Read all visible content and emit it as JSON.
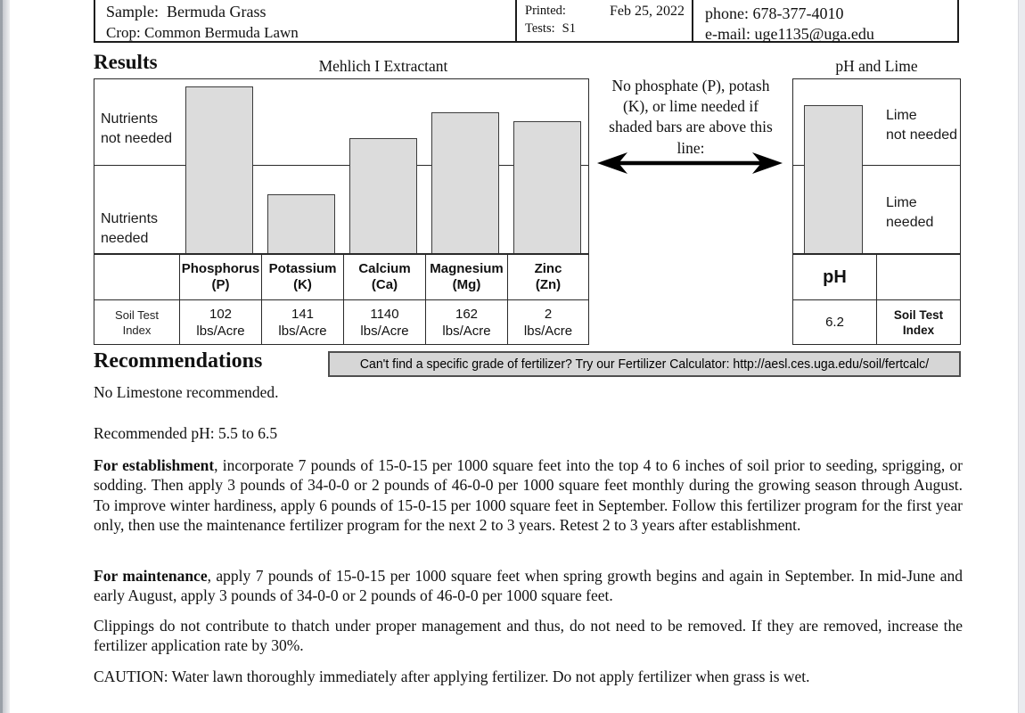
{
  "header": {
    "sample_label": "Sample:",
    "sample_value": "Bermuda Grass",
    "crop_label": "Crop:",
    "crop_value": "Common Bermuda Lawn",
    "printed_label": "Printed:",
    "printed_value": "Feb 25, 2022",
    "tests_label": "Tests:",
    "tests_value": "S1",
    "phone": "phone: 678-377-4010",
    "email": "e-mail: uge1135@uga.edu"
  },
  "results": {
    "section_title": "Results",
    "chart_title": "Mehlich I Extractant",
    "upper_label_line1": "Nutrients",
    "upper_label_line2": "not needed",
    "lower_label_line1": "Nutrients",
    "lower_label_line2": "needed",
    "row_label_line1": "Soil Test",
    "row_label_line2": "Index",
    "columns": [
      {
        "name": "Phosphorus",
        "symbol": "(P)",
        "value": "102",
        "unit": "lbs/Acre",
        "bar_pct": 96
      },
      {
        "name": "Potassium",
        "symbol": "(K)",
        "value": "141",
        "unit": "lbs/Acre",
        "bar_pct": 34
      },
      {
        "name": "Calcium",
        "symbol": "(Ca)",
        "value": "1140",
        "unit": "lbs/Acre",
        "bar_pct": 66
      },
      {
        "name": "Magnesium",
        "symbol": "(Mg)",
        "value": "162",
        "unit": "lbs/Acre",
        "bar_pct": 81
      },
      {
        "name": "Zinc",
        "symbol": "(Zn)",
        "value": "2",
        "unit": "lbs/Acre",
        "bar_pct": 76
      }
    ]
  },
  "annotation": {
    "lines": [
      "No phosphate (P), potash",
      "(K), or lime needed if",
      "shaded bars are above this",
      "line:"
    ]
  },
  "ph_section": {
    "section_title": "pH and Lime",
    "upper_label_line1": "Lime",
    "upper_label_line2": "not needed",
    "lower_label_line1": "Lime",
    "lower_label_line2": "needed",
    "header": "pH",
    "value": "6.2",
    "row_label_line1": "Soil Test",
    "row_label_line2": "Index",
    "bar_pct": 85
  },
  "recommendations": {
    "title": "Recommendations",
    "calculator_note": "Can't find a specific grade of fertilizer?  Try our Fertilizer Calculator: http://aesl.ces.uga.edu/soil/fertcalc/",
    "no_limestone": "No Limestone recommended.",
    "ph_line": "Recommended pH: 5.5 to 6.5",
    "paragraphs": [
      {
        "bold": "For establishment",
        "rest": ", incorporate 7 pounds of 15-0-15 per 1000 square feet into the top 4 to 6 inches of soil prior to seeding, sprigging, or sodding. Then apply 3 pounds of 34-0-0 or 2 pounds of 46-0-0 per 1000 square feet monthly during the growing season through August. To improve winter hardiness, apply 6 pounds of 15-0-15 per 1000 square feet in September. Follow this fertilizer program for the first year only, then use the maintenance fertilizer program for the next 2 to 3 years. Retest 2 to 3 years after establishment."
      },
      {
        "bold": "For maintenance",
        "rest": ", apply 7 pounds of 15-0-15 per 1000 square feet when spring growth begins and again in September. In mid-June and early August, apply 3 pounds of 34-0-0 or 2 pounds of 46-0-0 per 1000 square feet."
      },
      {
        "bold": "",
        "rest": "Clippings do not contribute to thatch under proper management and thus, do not need to be removed. If they are removed, increase the fertilizer application rate by 30%."
      },
      {
        "bold": "",
        "rest": "CAUTION: Water lawn thoroughly immediately after applying fertilizer. Do not apply fertilizer when grass is wet."
      }
    ]
  },
  "colors": {
    "bar_fill": "#dcdcdc",
    "line_border": "#2a2a2a",
    "note_background": "#d6d6d6"
  },
  "chart_data": [
    {
      "type": "bar",
      "title": "Mehlich I Extractant",
      "categories": [
        "Phosphorus (P)",
        "Potassium (K)",
        "Calcium (Ca)",
        "Magnesium (Mg)",
        "Zinc (Zn)"
      ],
      "values": [
        102,
        141,
        1140,
        162,
        2
      ],
      "value_units": "lbs/Acre",
      "series_label": "Soil Test Index",
      "bar_height_pct_of_box": [
        96,
        34,
        66,
        81,
        76
      ],
      "threshold_line_pct_from_top": 49,
      "region_above_line": "Nutrients not needed",
      "region_below_line": "Nutrients needed",
      "annotation": "No phosphate (P), potash (K), or lime needed if shaded bars are above this line:",
      "legend_position": "none",
      "grid": false
    },
    {
      "type": "bar",
      "title": "pH and Lime",
      "categories": [
        "pH"
      ],
      "values": [
        6.2
      ],
      "series_label": "Soil Test Index",
      "bar_height_pct_of_box": [
        85
      ],
      "threshold_line_pct_from_top": 49,
      "region_above_line": "Lime not needed",
      "region_below_line": "Lime needed",
      "legend_position": "none",
      "grid": false
    }
  ]
}
